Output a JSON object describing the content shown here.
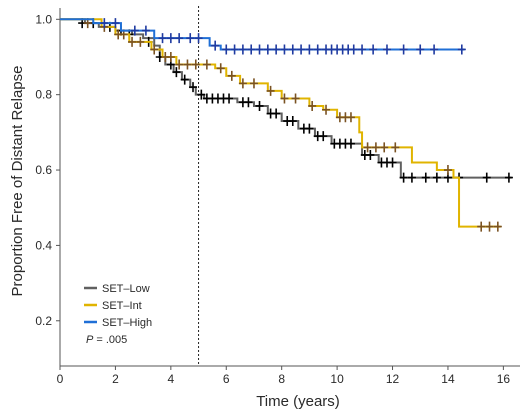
{
  "chart_data": {
    "type": "line",
    "subtype": "kaplan-meier",
    "title": "",
    "xlabel": "Time (years)",
    "ylabel": "Proportion Free of Distant Relapse",
    "xlim": [
      0,
      16.6
    ],
    "ylim": [
      0.08,
      1.03
    ],
    "x_ticks": [
      0,
      2,
      4,
      6,
      8,
      10,
      12,
      14,
      16
    ],
    "x_tick_labels": [
      "0",
      "2",
      "4",
      "6",
      "8",
      "10",
      "12",
      "14",
      "16"
    ],
    "y_ticks": [
      0.2,
      0.4,
      0.6,
      0.8,
      1.0
    ],
    "y_tick_labels": [
      "0.2",
      "0.4",
      "0.6",
      "0.8",
      "1.0"
    ],
    "reference_line_x": 5.0,
    "grid": false,
    "legend_position": "bottom-left",
    "annotation": {
      "p_label": "P",
      "p_value": "= .005"
    },
    "series": [
      {
        "name": "SET–Low",
        "color": "#606060",
        "censor_color": "#000000",
        "steps": [
          [
            0,
            1.0
          ],
          [
            0.9,
            0.99
          ],
          [
            1.4,
            0.98
          ],
          [
            2.0,
            0.97
          ],
          [
            2.6,
            0.96
          ],
          [
            3.0,
            0.95
          ],
          [
            3.4,
            0.93
          ],
          [
            3.6,
            0.9
          ],
          [
            3.8,
            0.88
          ],
          [
            4.1,
            0.86
          ],
          [
            4.4,
            0.84
          ],
          [
            4.7,
            0.82
          ],
          [
            4.9,
            0.8
          ],
          [
            5.2,
            0.79
          ],
          [
            6.4,
            0.78
          ],
          [
            7.0,
            0.77
          ],
          [
            7.5,
            0.75
          ],
          [
            8.0,
            0.73
          ],
          [
            8.6,
            0.71
          ],
          [
            9.2,
            0.69
          ],
          [
            9.8,
            0.67
          ],
          [
            10.9,
            0.64
          ],
          [
            11.5,
            0.62
          ],
          [
            12.3,
            0.58
          ],
          [
            16.3,
            0.58
          ]
        ],
        "censored": [
          [
            0.8,
            0.99
          ],
          [
            1.2,
            0.99
          ],
          [
            1.8,
            0.98
          ],
          [
            2.2,
            0.97
          ],
          [
            2.5,
            0.96
          ],
          [
            3.2,
            0.94
          ],
          [
            3.6,
            0.9
          ],
          [
            4.0,
            0.88
          ],
          [
            4.2,
            0.86
          ],
          [
            4.5,
            0.84
          ],
          [
            4.8,
            0.82
          ],
          [
            5.1,
            0.8
          ],
          [
            5.3,
            0.79
          ],
          [
            5.5,
            0.79
          ],
          [
            5.7,
            0.79
          ],
          [
            5.9,
            0.79
          ],
          [
            6.1,
            0.79
          ],
          [
            6.6,
            0.78
          ],
          [
            6.8,
            0.78
          ],
          [
            7.2,
            0.77
          ],
          [
            7.6,
            0.75
          ],
          [
            7.8,
            0.75
          ],
          [
            8.2,
            0.73
          ],
          [
            8.4,
            0.73
          ],
          [
            8.8,
            0.71
          ],
          [
            9.0,
            0.71
          ],
          [
            9.3,
            0.69
          ],
          [
            9.5,
            0.69
          ],
          [
            9.9,
            0.67
          ],
          [
            10.1,
            0.67
          ],
          [
            10.3,
            0.67
          ],
          [
            10.5,
            0.67
          ],
          [
            11.0,
            0.64
          ],
          [
            11.2,
            0.64
          ],
          [
            11.6,
            0.62
          ],
          [
            11.8,
            0.62
          ],
          [
            12.0,
            0.62
          ],
          [
            12.4,
            0.58
          ],
          [
            12.7,
            0.58
          ],
          [
            13.2,
            0.58
          ],
          [
            13.6,
            0.58
          ],
          [
            14.0,
            0.58
          ],
          [
            14.4,
            0.58
          ],
          [
            15.4,
            0.58
          ],
          [
            16.2,
            0.58
          ]
        ]
      },
      {
        "name": "SET–Int",
        "color": "#e0b400",
        "censor_color": "#7a5222",
        "steps": [
          [
            0,
            1.0
          ],
          [
            1.5,
            0.98
          ],
          [
            2.0,
            0.96
          ],
          [
            2.5,
            0.94
          ],
          [
            3.3,
            0.92
          ],
          [
            3.7,
            0.9
          ],
          [
            4.2,
            0.88
          ],
          [
            5.6,
            0.87
          ],
          [
            6.0,
            0.85
          ],
          [
            6.5,
            0.83
          ],
          [
            7.5,
            0.81
          ],
          [
            8.0,
            0.79
          ],
          [
            9.0,
            0.77
          ],
          [
            9.5,
            0.76
          ],
          [
            10.0,
            0.74
          ],
          [
            10.8,
            0.7
          ],
          [
            10.9,
            0.66
          ],
          [
            12.7,
            0.62
          ],
          [
            13.6,
            0.6
          ],
          [
            14.2,
            0.58
          ],
          [
            14.4,
            0.45
          ],
          [
            15.9,
            0.45
          ]
        ],
        "censored": [
          [
            1.0,
            0.99
          ],
          [
            1.6,
            0.98
          ],
          [
            2.1,
            0.96
          ],
          [
            2.3,
            0.96
          ],
          [
            2.6,
            0.94
          ],
          [
            2.9,
            0.94
          ],
          [
            3.4,
            0.92
          ],
          [
            3.8,
            0.9
          ],
          [
            4.0,
            0.9
          ],
          [
            4.3,
            0.88
          ],
          [
            4.6,
            0.88
          ],
          [
            4.9,
            0.88
          ],
          [
            5.3,
            0.88
          ],
          [
            5.8,
            0.87
          ],
          [
            6.2,
            0.85
          ],
          [
            6.6,
            0.83
          ],
          [
            7.0,
            0.83
          ],
          [
            7.6,
            0.81
          ],
          [
            8.1,
            0.79
          ],
          [
            8.5,
            0.79
          ],
          [
            9.1,
            0.77
          ],
          [
            9.6,
            0.76
          ],
          [
            10.1,
            0.74
          ],
          [
            10.3,
            0.74
          ],
          [
            10.5,
            0.74
          ],
          [
            11.1,
            0.66
          ],
          [
            11.4,
            0.66
          ],
          [
            11.7,
            0.66
          ],
          [
            12.1,
            0.66
          ],
          [
            14.0,
            0.6
          ],
          [
            15.2,
            0.45
          ],
          [
            15.5,
            0.45
          ],
          [
            15.8,
            0.45
          ]
        ]
      },
      {
        "name": "SET–High",
        "color": "#1f6fd6",
        "censor_color": "#1f3aa0",
        "steps": [
          [
            0,
            1.0
          ],
          [
            1.2,
            0.99
          ],
          [
            2.2,
            0.97
          ],
          [
            3.4,
            0.95
          ],
          [
            5.4,
            0.93
          ],
          [
            5.8,
            0.92
          ],
          [
            14.6,
            0.92
          ]
        ],
        "censored": [
          [
            1.6,
            0.99
          ],
          [
            2.0,
            0.99
          ],
          [
            2.7,
            0.97
          ],
          [
            3.1,
            0.97
          ],
          [
            3.7,
            0.95
          ],
          [
            4.0,
            0.95
          ],
          [
            4.3,
            0.95
          ],
          [
            4.7,
            0.95
          ],
          [
            5.0,
            0.95
          ],
          [
            5.6,
            0.93
          ],
          [
            6.0,
            0.92
          ],
          [
            6.3,
            0.92
          ],
          [
            6.6,
            0.92
          ],
          [
            6.9,
            0.92
          ],
          [
            7.2,
            0.92
          ],
          [
            7.5,
            0.92
          ],
          [
            7.8,
            0.92
          ],
          [
            8.1,
            0.92
          ],
          [
            8.4,
            0.92
          ],
          [
            8.7,
            0.92
          ],
          [
            9.0,
            0.92
          ],
          [
            9.3,
            0.92
          ],
          [
            9.6,
            0.92
          ],
          [
            9.8,
            0.92
          ],
          [
            10.0,
            0.92
          ],
          [
            10.2,
            0.92
          ],
          [
            10.4,
            0.92
          ],
          [
            10.6,
            0.92
          ],
          [
            10.9,
            0.92
          ],
          [
            11.3,
            0.92
          ],
          [
            11.8,
            0.92
          ],
          [
            12.4,
            0.92
          ],
          [
            13.0,
            0.92
          ],
          [
            13.5,
            0.92
          ],
          [
            14.5,
            0.92
          ]
        ]
      }
    ]
  }
}
